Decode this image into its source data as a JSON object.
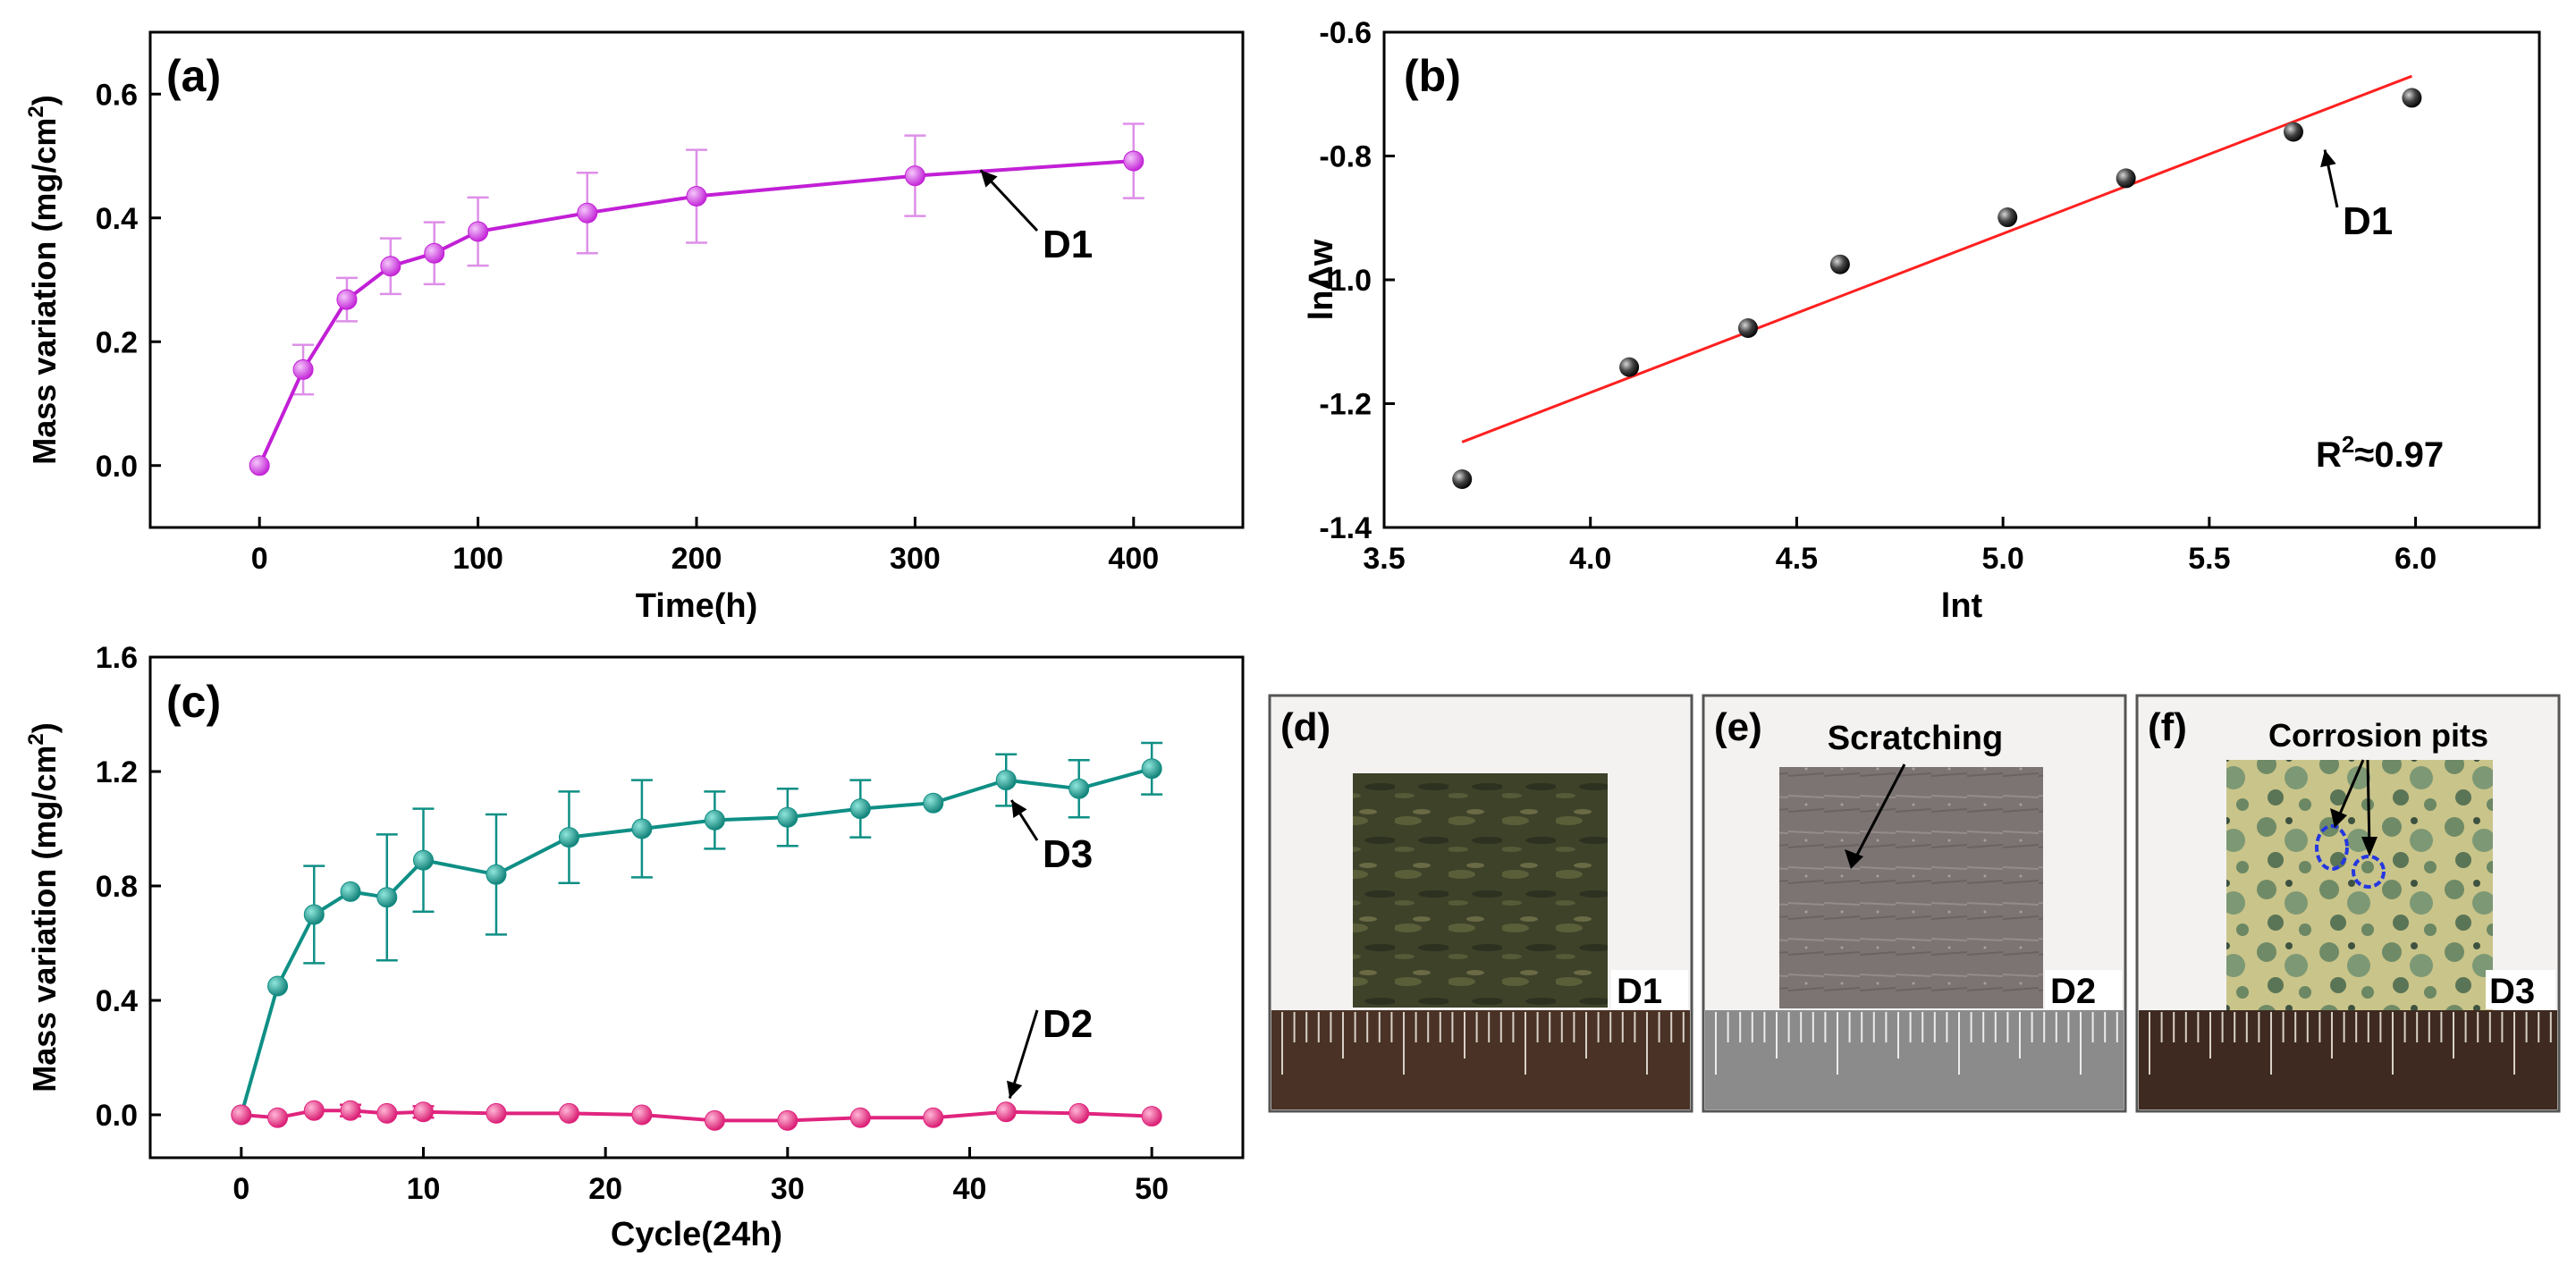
{
  "colors": {
    "purple": "#c21fd6",
    "purple_err": "#dd8fe8",
    "teal": "#0f8f85",
    "pink": "#e0247e",
    "red": "#ff2020",
    "black": "#1a1a1a",
    "blue_circle": "#2437e0"
  },
  "chart_data": [
    {
      "panel": "a",
      "type": "line",
      "panel_label": "(a)",
      "xlabel": "Time(h)",
      "ylabel": "Mass variation (mg/cm²)",
      "ylabel_main": "Mass variation (mg/cm",
      "ylabel_sup": "2",
      "ylabel_end": ")",
      "xlim": [
        -50,
        450
      ],
      "ylim": [
        -0.1,
        0.7
      ],
      "xticks": [
        0,
        100,
        200,
        300,
        400
      ],
      "xtick_labels": [
        "0",
        "100",
        "200",
        "300",
        "400"
      ],
      "yticks": [
        0.0,
        0.2,
        0.4,
        0.6
      ],
      "ytick_labels": [
        "0.0",
        "0.2",
        "0.4",
        "0.6"
      ],
      "series": [
        {
          "name": "D1",
          "color": "#c21fd6",
          "x": [
            0,
            20,
            40,
            60,
            80,
            100,
            150,
            200,
            300,
            400
          ],
          "y": [
            0.0,
            0.155,
            0.268,
            0.322,
            0.343,
            0.378,
            0.408,
            0.435,
            0.468,
            0.492
          ],
          "err": [
            0,
            0.04,
            0.035,
            0.045,
            0.05,
            0.055,
            0.065,
            0.075,
            0.065,
            0.06
          ]
        }
      ],
      "annotation": {
        "text": "D1",
        "target_x": 330,
        "target_y": 0.48
      }
    },
    {
      "panel": "b",
      "type": "scatter",
      "panel_label": "(b)",
      "xlabel": "lnt",
      "ylabel": "lnΔw",
      "xlim": [
        3.5,
        6.3
      ],
      "ylim": [
        -1.4,
        -0.6
      ],
      "xticks": [
        3.5,
        4.0,
        4.5,
        5.0,
        5.5,
        6.0
      ],
      "xtick_labels": [
        "3.5",
        "4.0",
        "4.5",
        "5.0",
        "5.5",
        "6.0"
      ],
      "yticks": [
        -1.4,
        -1.2,
        -1.0,
        -0.8,
        -0.6
      ],
      "ytick_labels": [
        "-1.4",
        "-1.2",
        "-1.0",
        "-0.8",
        "-0.6"
      ],
      "series": [
        {
          "name": "D1",
          "color": "#1a1a1a",
          "x": [
            3.689,
            4.094,
            4.382,
            4.605,
            5.011,
            5.298,
            5.704,
            5.991
          ],
          "y": [
            -1.322,
            -1.141,
            -1.078,
            -0.975,
            -0.899,
            -0.836,
            -0.761,
            -0.706
          ]
        }
      ],
      "fit": {
        "x": [
          3.689,
          5.991
        ],
        "y": [
          -1.262,
          -0.671
        ],
        "color": "#ff2020"
      },
      "r2_main": "R",
      "r2_sup": "2",
      "r2_value": "≈0.97",
      "annotation": {
        "text": "D1",
        "target_x": 5.78,
        "target_y": -0.79
      }
    },
    {
      "panel": "c",
      "type": "line",
      "panel_label": "(c)",
      "xlabel": "Cycle(24h)",
      "ylabel": "Mass variation (mg/cm²)",
      "ylabel_main": "Mass variation (mg/cm",
      "ylabel_sup": "2",
      "ylabel_end": ")",
      "xlim": [
        -5,
        55
      ],
      "ylim": [
        -0.15,
        1.6
      ],
      "xticks": [
        0,
        10,
        20,
        30,
        40,
        50
      ],
      "xtick_labels": [
        "0",
        "10",
        "20",
        "30",
        "40",
        "50"
      ],
      "yticks": [
        0.0,
        0.4,
        0.8,
        1.2,
        1.6
      ],
      "ytick_labels": [
        "0.0",
        "0.4",
        "0.8",
        "1.2",
        "1.6"
      ],
      "series": [
        {
          "name": "D3",
          "color": "#0f8f85",
          "x": [
            0,
            2,
            4,
            6,
            8,
            10,
            14,
            18,
            22,
            26,
            30,
            34,
            38,
            42,
            46,
            50
          ],
          "y": [
            0.0,
            0.45,
            0.7,
            0.78,
            0.76,
            0.89,
            0.84,
            0.97,
            1.0,
            1.03,
            1.04,
            1.07,
            1.09,
            1.17,
            1.14,
            1.21
          ],
          "err": [
            0,
            0,
            0.17,
            0,
            0.22,
            0.18,
            0.21,
            0.16,
            0.17,
            0.1,
            0.1,
            0.1,
            0,
            0.09,
            0.1,
            0.09
          ]
        },
        {
          "name": "D2",
          "color": "#e0247e",
          "x": [
            0,
            2,
            4,
            6,
            8,
            10,
            14,
            18,
            22,
            26,
            30,
            34,
            38,
            42,
            46,
            50
          ],
          "y": [
            0.0,
            -0.01,
            0.015,
            0.015,
            0.005,
            0.01,
            0.005,
            0.005,
            0.0,
            -0.02,
            -0.02,
            -0.01,
            -0.01,
            0.01,
            0.005,
            -0.005
          ],
          "err": [
            0,
            0,
            0,
            0.02,
            0,
            0.02,
            0,
            0,
            0,
            0,
            0,
            0,
            0,
            0,
            0,
            0
          ]
        }
      ],
      "annotations": [
        {
          "text": "D3",
          "target_x": 42,
          "target_y": 1.15
        },
        {
          "text": "D2",
          "target_x": 42,
          "target_y": 0.02
        }
      ]
    }
  ],
  "photos": [
    {
      "panel": "d",
      "label": "(d)",
      "sample": "D1",
      "caption": ""
    },
    {
      "panel": "e",
      "label": "(e)",
      "sample": "D2",
      "caption": "Scratching"
    },
    {
      "panel": "f",
      "label": "(f)",
      "sample": "D3",
      "caption": "Corrosion pits"
    }
  ]
}
